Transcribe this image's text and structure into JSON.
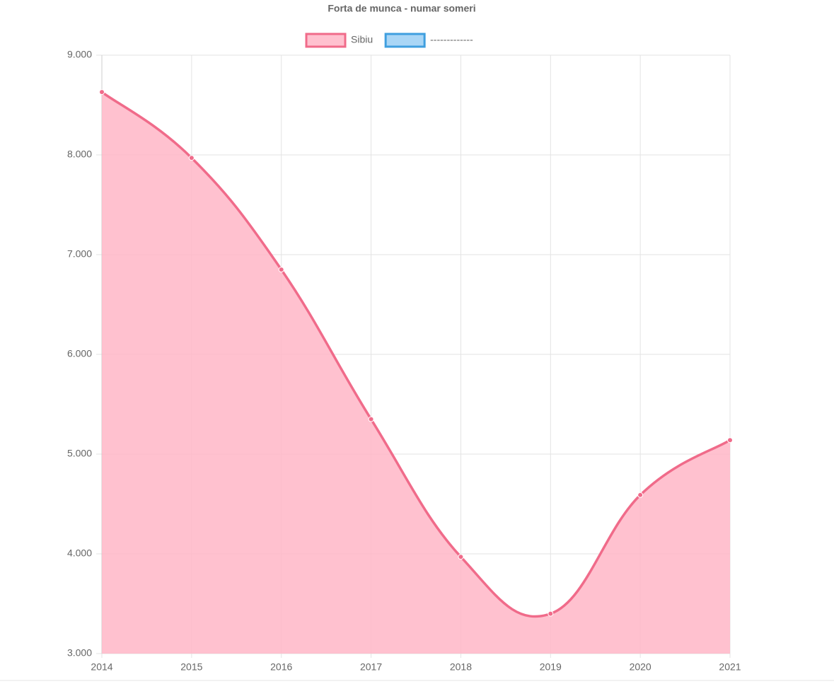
{
  "chart_data": {
    "type": "line",
    "title": "Forta de munca - numar someri",
    "categories": [
      "2014",
      "2015",
      "2016",
      "2017",
      "2018",
      "2019",
      "2020",
      "2021"
    ],
    "series": [
      {
        "name": "Sibiu",
        "color": "#f06b8a",
        "fill": "rgba(255,182,199,0.85)",
        "values": [
          8630,
          7970,
          6850,
          5350,
          3970,
          3400,
          4590,
          5140
        ]
      },
      {
        "name": "-------------",
        "color": "#3f9fdf",
        "fill": "rgba(160,210,245,0.9)",
        "values": [
          null,
          null,
          null,
          null,
          null,
          null,
          null,
          null
        ]
      }
    ],
    "ylim": [
      3000,
      9000
    ],
    "yticks": [
      {
        "value": 3000,
        "label": "3.000"
      },
      {
        "value": 4000,
        "label": "4.000"
      },
      {
        "value": 5000,
        "label": "5.000"
      },
      {
        "value": 6000,
        "label": "6.000"
      },
      {
        "value": 7000,
        "label": "7.000"
      },
      {
        "value": 8000,
        "label": "8.000"
      },
      {
        "value": 9000,
        "label": "9.000"
      }
    ],
    "grid": true,
    "legend": "top"
  }
}
